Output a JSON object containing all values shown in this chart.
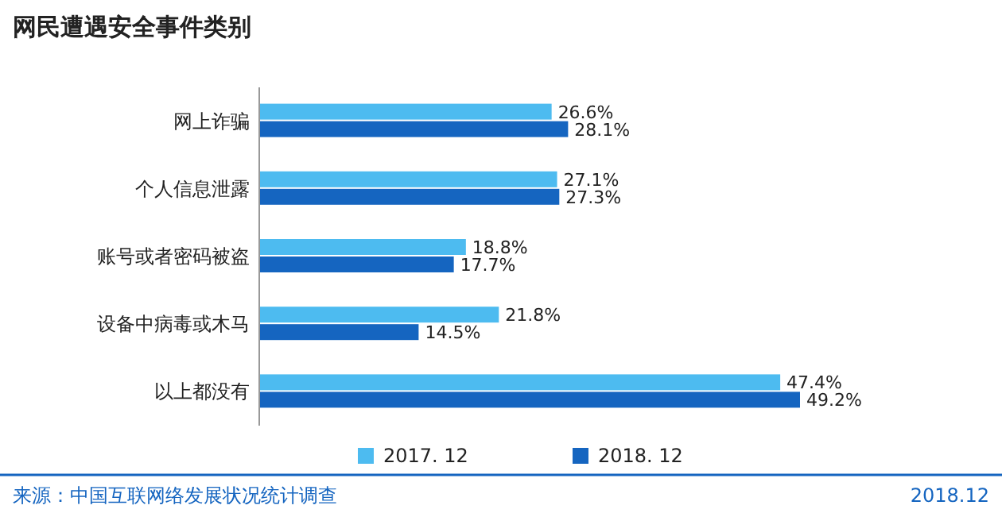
{
  "chart_data": {
    "type": "bar",
    "orientation": "horizontal",
    "title": "网民遭遇安全事件类别",
    "categories": [
      "网上诈骗",
      "个人信息泄露",
      "账号或者密码被盗",
      "设备中病毒或木马",
      "以上都没有"
    ],
    "series": [
      {
        "name": "2017. 12",
        "color": "#4dbbf0",
        "values": [
          26.6,
          27.1,
          18.8,
          21.8,
          47.4
        ],
        "value_labels": [
          "26.6%",
          "27.1%",
          "18.8%",
          "21.8%",
          "47.4%"
        ]
      },
      {
        "name": "2018. 12",
        "color": "#1565c0",
        "values": [
          28.1,
          27.3,
          17.7,
          14.5,
          49.2
        ],
        "value_labels": [
          "28.1%",
          "27.3%",
          "17.7%",
          "14.5%",
          "49.2%"
        ]
      }
    ],
    "legend": "bottom",
    "annotations": [
      "来源：中国互联网络发展状况统计调查",
      "2018.12"
    ]
  }
}
